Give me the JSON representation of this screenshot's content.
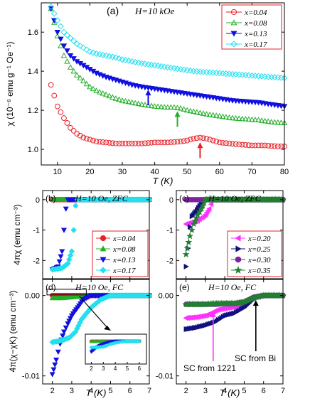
{
  "chart_data": [
    {
      "type": "scatter",
      "panel": "(a)",
      "title": "H=10 kOe",
      "xlabel": "T (K)",
      "ylabel": "χ (10⁻⁶ emu g⁻¹ Oe⁻¹)",
      "xlim": [
        5,
        80
      ],
      "ylim": [
        0.92,
        1.75
      ],
      "xticks": [
        "10",
        "20",
        "30",
        "40",
        "50",
        "60",
        "70",
        "80"
      ],
      "yticks": [
        "1.0",
        "1.2",
        "1.4",
        "1.6"
      ],
      "legend_position": "top-right",
      "series": [
        {
          "name": "x=0.04",
          "marker": "circle-open",
          "color": "#e8222a",
          "x": [
            8,
            10,
            12,
            14,
            16,
            18,
            20,
            22,
            25,
            28,
            30,
            33,
            36,
            40,
            44,
            48,
            50,
            52,
            54,
            56,
            58,
            60,
            63,
            66,
            70,
            74,
            78,
            80
          ],
          "y": [
            1.33,
            1.22,
            1.16,
            1.11,
            1.08,
            1.06,
            1.05,
            1.04,
            1.035,
            1.03,
            1.03,
            1.03,
            1.03,
            1.035,
            1.035,
            1.04,
            1.045,
            1.055,
            1.06,
            1.055,
            1.045,
            1.035,
            1.03,
            1.025,
            1.02,
            1.02,
            1.015,
            1.015
          ]
        },
        {
          "name": "x=0.08",
          "marker": "triangle-up-open",
          "color": "#22b02a",
          "x": [
            8,
            10,
            12,
            14,
            16,
            18,
            20,
            22,
            25,
            28,
            30,
            33,
            36,
            40,
            44,
            46,
            48,
            50,
            53,
            56,
            60,
            64,
            68,
            72,
            76,
            80
          ],
          "y": [
            1.72,
            1.58,
            1.48,
            1.42,
            1.38,
            1.35,
            1.32,
            1.3,
            1.28,
            1.26,
            1.25,
            1.24,
            1.23,
            1.22,
            1.215,
            1.215,
            1.21,
            1.2,
            1.19,
            1.18,
            1.17,
            1.16,
            1.155,
            1.15,
            1.14,
            1.135
          ]
        },
        {
          "name": "x=0.13",
          "marker": "triangle-down-filled",
          "color": "#1010e0",
          "x": [
            8,
            10,
            12,
            14,
            16,
            18,
            20,
            22,
            25,
            28,
            30,
            33,
            36,
            38,
            40,
            44,
            48,
            52,
            56,
            60,
            64,
            68,
            72,
            76,
            80
          ],
          "y": [
            1.72,
            1.6,
            1.53,
            1.48,
            1.45,
            1.43,
            1.41,
            1.39,
            1.37,
            1.355,
            1.345,
            1.33,
            1.32,
            1.315,
            1.31,
            1.3,
            1.29,
            1.28,
            1.27,
            1.26,
            1.25,
            1.245,
            1.24,
            1.23,
            1.22
          ]
        },
        {
          "name": "x=0.17",
          "marker": "diamond-open",
          "color": "#22e0f0",
          "x": [
            8,
            10,
            12,
            14,
            16,
            18,
            20,
            22,
            25,
            28,
            30,
            33,
            36,
            40,
            44,
            48,
            52,
            56,
            60,
            64,
            68,
            72,
            76,
            80
          ],
          "y": [
            1.73,
            1.66,
            1.6,
            1.57,
            1.54,
            1.52,
            1.5,
            1.49,
            1.48,
            1.47,
            1.46,
            1.45,
            1.44,
            1.43,
            1.42,
            1.41,
            1.4,
            1.395,
            1.39,
            1.385,
            1.38,
            1.375,
            1.37,
            1.365
          ]
        }
      ],
      "annotations": [
        {
          "type": "arrow",
          "x": 38,
          "y": 1.32,
          "color": "#1010e0"
        },
        {
          "type": "arrow",
          "x": 47,
          "y": 1.21,
          "color": "#22b02a"
        },
        {
          "type": "arrow",
          "x": 54,
          "y": 1.05,
          "color": "#e8222a"
        }
      ]
    },
    {
      "type": "scatter",
      "panel": "(b)",
      "title": "H=10 Oe, ZFC",
      "ylabel": "4πχ (emu cm⁻³)",
      "xlim": [
        1.5,
        7
      ],
      "ylim": [
        -2.6,
        0.3
      ],
      "yticks": [
        "0",
        "-1",
        "-2"
      ],
      "series": [
        {
          "name": "x=0.04",
          "marker": "circle-filled",
          "color": "#e8222a",
          "x": [
            2,
            3,
            4,
            5,
            6,
            7
          ],
          "y": [
            0,
            0,
            0,
            0,
            0,
            0
          ]
        },
        {
          "name": "x=0.08",
          "marker": "triangle-up-filled",
          "color": "#22b02a",
          "x": [
            2,
            3,
            4,
            5,
            6,
            7
          ],
          "y": [
            0,
            0,
            0,
            0,
            0,
            0
          ]
        },
        {
          "name": "x=0.13",
          "marker": "triangle-down-filled",
          "color": "#1010e0",
          "x": [
            2,
            2.3,
            2.5,
            2.6,
            2.7,
            2.8,
            3,
            4,
            5,
            6,
            7
          ],
          "y": [
            -2.3,
            -2.2,
            -1.7,
            -1,
            -0.3,
            0,
            0,
            0,
            0,
            0,
            0
          ]
        },
        {
          "name": "x=0.17",
          "marker": "diamond-filled",
          "color": "#22e0f0",
          "x": [
            2,
            2.5,
            2.8,
            3,
            3.1,
            3.2,
            3.3,
            4,
            5,
            6,
            7
          ],
          "y": [
            -2.3,
            -2.25,
            -2.1,
            -1.7,
            -1,
            -0.2,
            0,
            0,
            0,
            0,
            0
          ]
        }
      ]
    },
    {
      "type": "scatter",
      "panel": "(c)",
      "title": "H=10 Oe, ZFC",
      "xlim": [
        1.5,
        7
      ],
      "ylim": [
        -2.6,
        0.3
      ],
      "yticks": [
        "0",
        "-1",
        "-2"
      ],
      "series": [
        {
          "name": "x=0.20",
          "marker": "triangle-left-filled",
          "color": "#ff30ff",
          "x": [
            2,
            2.3,
            2.6,
            2.8,
            3,
            3.2,
            3.4,
            4,
            5,
            6,
            7
          ],
          "y": [
            -0.8,
            -0.75,
            -0.7,
            -0.6,
            -0.5,
            -0.3,
            0,
            0,
            0,
            0,
            0
          ]
        },
        {
          "name": "x=0.25",
          "marker": "triangle-right-filled",
          "color": "#10107f",
          "x": [
            2,
            2.1,
            2.2,
            2.3,
            2.5,
            2.7,
            3,
            4,
            5,
            6,
            7
          ],
          "y": [
            -2.2,
            -1.6,
            -0.9,
            -0.55,
            -0.4,
            -0.2,
            0,
            0,
            0,
            0,
            0
          ]
        },
        {
          "name": "x=0.30",
          "marker": "circle-filled",
          "color": "#8020a0",
          "x": [
            2,
            2.5,
            3,
            4,
            5,
            6,
            7
          ],
          "y": [
            0,
            0,
            0,
            0,
            0,
            0,
            0
          ]
        },
        {
          "name": "x=0.35",
          "marker": "star-filled",
          "color": "#208030",
          "x": [
            2,
            2.2,
            2.4,
            2.6,
            2.8,
            3,
            4,
            5,
            6,
            7
          ],
          "y": [
            -1.8,
            -1.2,
            -0.8,
            -0.5,
            -0.3,
            0,
            0,
            0,
            0,
            0
          ]
        }
      ]
    },
    {
      "type": "scatter",
      "panel": "(d)",
      "title": "H=10 Oe, FC",
      "xlabel": "T (K)",
      "ylabel": "4π(χ−χK) (emu cm⁻³)",
      "xlim": [
        1.5,
        7
      ],
      "ylim": [
        -0.011,
        0.002
      ],
      "xticks": [
        "2",
        "3",
        "4",
        "5",
        "6",
        "7"
      ],
      "yticks": [
        "0.00",
        "-0.01"
      ],
      "inset_xticks": [
        "2",
        "3",
        "4",
        "5",
        "6"
      ],
      "series": [
        {
          "name": "x=0.04",
          "marker": "circle-filled",
          "color": "#e8222a",
          "x": [
            2,
            3,
            4,
            5,
            6,
            7
          ],
          "y": [
            0,
            0,
            0,
            0,
            0,
            0
          ]
        },
        {
          "name": "x=0.08",
          "marker": "triangle-up-filled",
          "color": "#22b02a",
          "x": [
            2,
            2.5,
            3,
            3.5,
            4,
            5,
            6,
            7
          ],
          "y": [
            -0.0003,
            -0.0003,
            -0.0002,
            -0.0001,
            0,
            0,
            0,
            0
          ]
        },
        {
          "name": "x=0.13",
          "marker": "triangle-down-filled",
          "color": "#1010e0",
          "x": [
            2,
            2.2,
            2.4,
            2.6,
            2.8,
            3,
            3.3,
            3.6,
            4,
            5,
            6,
            7
          ],
          "y": [
            -0.0098,
            -0.008,
            -0.006,
            -0.0045,
            -0.0035,
            -0.0025,
            -0.0015,
            -0.0005,
            0,
            0,
            0,
            0
          ]
        },
        {
          "name": "x=0.17",
          "marker": "diamond-filled",
          "color": "#22e0f0",
          "x": [
            2,
            2.3,
            2.6,
            2.9,
            3.2,
            3.5,
            4,
            4.5,
            5,
            6,
            7
          ],
          "y": [
            -0.0058,
            -0.0057,
            -0.0055,
            -0.0052,
            -0.0045,
            -0.003,
            -0.0015,
            -0.0005,
            0,
            0,
            0
          ]
        }
      ]
    },
    {
      "type": "scatter",
      "panel": "(e)",
      "title": "H=10 Oe, FC",
      "xlabel": "T (K)",
      "xlim": [
        1.5,
        7
      ],
      "ylim": [
        -0.011,
        0.002
      ],
      "xticks": [
        "2",
        "3",
        "4",
        "5",
        "6",
        "7"
      ],
      "yticks": [
        "0.00",
        "-0.01"
      ],
      "annotations": [
        {
          "text": "SC from 1221",
          "color": "#ff30ff",
          "x": 3.4
        },
        {
          "text": "SC from Bi",
          "color": "#000000",
          "x": 5.6
        }
      ],
      "series": [
        {
          "name": "x=0.20",
          "marker": "triangle-left-filled",
          "color": "#ff30ff",
          "x": [
            2,
            2.5,
            3,
            3.3,
            3.6,
            4,
            4.5,
            5,
            5.5,
            6,
            6.5,
            7
          ],
          "y": [
            -0.0028,
            -0.0027,
            -0.0025,
            -0.0022,
            -0.0018,
            -0.0016,
            -0.0014,
            -0.001,
            -0.0002,
            0,
            0,
            0
          ]
        },
        {
          "name": "x=0.25",
          "marker": "triangle-right-filled",
          "color": "#10107f",
          "x": [
            2,
            2.5,
            3,
            3.5,
            4,
            4.5,
            5,
            5.5,
            6,
            6.5,
            7
          ],
          "y": [
            -0.0042,
            -0.004,
            -0.0037,
            -0.0033,
            -0.0025,
            -0.0022,
            -0.0015,
            -0.0004,
            0,
            0,
            0
          ]
        },
        {
          "name": "x=0.30",
          "marker": "circle-filled",
          "color": "#8020a0",
          "x": [
            2,
            2.5,
            3,
            3.5,
            4,
            4.5,
            5,
            5.5,
            6,
            6.5,
            7
          ],
          "y": [
            -0.0011,
            -0.0011,
            -0.0011,
            -0.0011,
            -0.001,
            -0.001,
            -0.0008,
            -0.0002,
            0,
            0,
            0
          ]
        },
        {
          "name": "x=0.35",
          "marker": "star-filled",
          "color": "#208030",
          "x": [
            2,
            2.5,
            3,
            3.5,
            4,
            4.5,
            5,
            5.5,
            6,
            6.5,
            7
          ],
          "y": [
            -0.0011,
            -0.0011,
            -0.0011,
            -0.001,
            -0.001,
            -0.001,
            -0.0008,
            -0.0003,
            0,
            0,
            0
          ]
        }
      ]
    }
  ]
}
